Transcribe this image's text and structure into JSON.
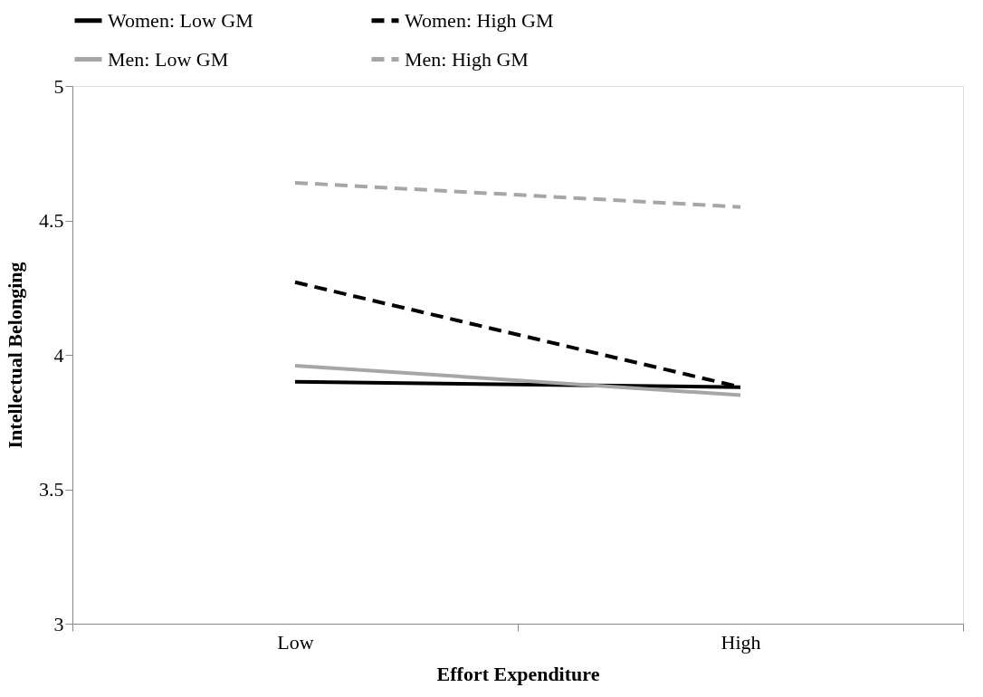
{
  "chart_data": {
    "type": "line",
    "xlabel": "Effort Expenditure",
    "ylabel": "Intellectual Belonging",
    "categories": [
      "Low",
      "High"
    ],
    "ylim": [
      3,
      5
    ],
    "yticks": [
      3,
      3.5,
      4,
      4.5,
      5
    ],
    "legend": "top",
    "series": [
      {
        "name": "Women: Low GM",
        "color": "#000000",
        "line_style": "solid",
        "values": [
          3.9,
          3.88
        ]
      },
      {
        "name": "Women: High GM",
        "color": "#000000",
        "line_style": "dashed",
        "values": [
          4.27,
          3.88
        ]
      },
      {
        "name": "Men: Low GM",
        "color": "#a6a6a6",
        "line_style": "solid",
        "values": [
          3.96,
          3.85
        ]
      },
      {
        "name": "Men: High GM",
        "color": "#a6a6a6",
        "line_style": "dashed",
        "values": [
          4.64,
          4.55
        ]
      }
    ]
  }
}
